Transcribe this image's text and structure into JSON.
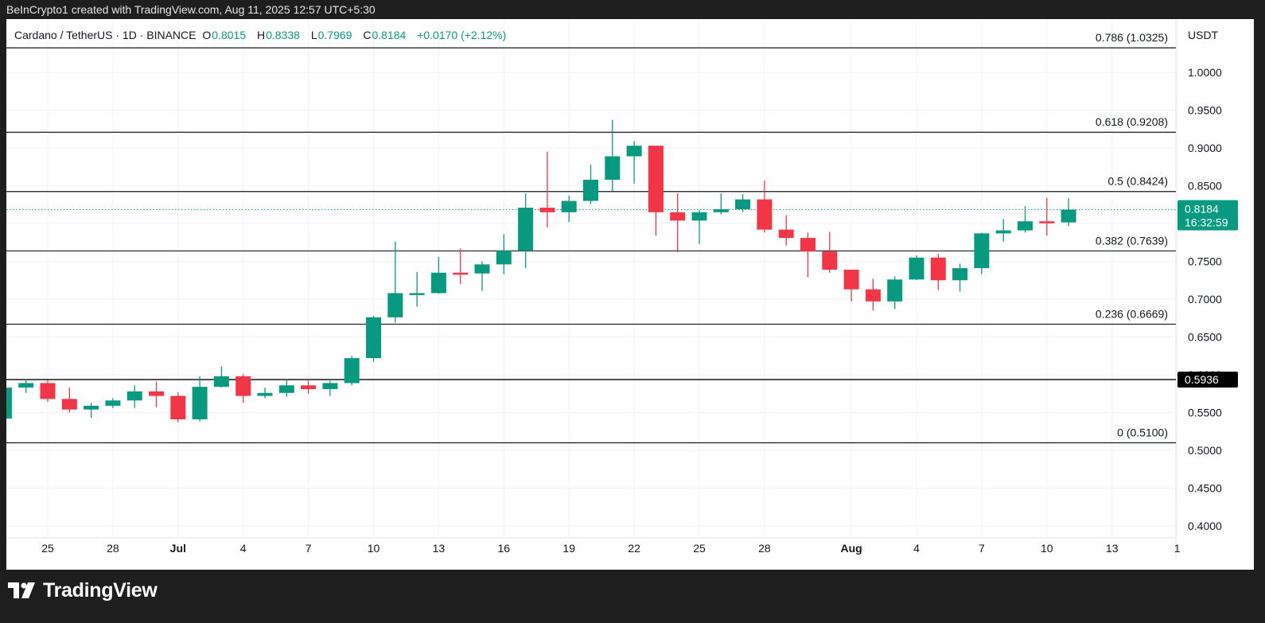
{
  "header": {
    "credit": "BeInCrypto1 created with TradingView.com, Aug 11, 2025 12:57 UTC+5:30"
  },
  "legend": {
    "symbol": "Cardano / TetherUS · 1D · BINANCE",
    "o_label": "O",
    "o": "0.8015",
    "h_label": "H",
    "h": "0.8338",
    "l_label": "L",
    "l": "0.7969",
    "c_label": "C",
    "c": "0.8184",
    "change": "+0.0170 (+2.12%)"
  },
  "currency": "USDT",
  "price_tag": {
    "price": "0.8184",
    "countdown": "16:32:59"
  },
  "line_tag": "0.5936",
  "footer": {
    "brand": "TradingView"
  },
  "colors": {
    "up": "#089981",
    "down": "#f23645",
    "grid": "#f0f3fa",
    "fib": "#131722"
  },
  "chart_data": {
    "type": "candlestick",
    "ylim": [
      0.38,
      1.07
    ],
    "y_ticks": [
      "1.0000",
      "0.9500",
      "0.9000",
      "0.8500",
      "0.8000",
      "0.7500",
      "0.7000",
      "0.6500",
      "0.6000",
      "0.5500",
      "0.5000",
      "0.4500",
      "0.4000"
    ],
    "x_ticks": [
      {
        "label": "25",
        "date": "2025-06-25"
      },
      {
        "label": "28",
        "date": "2025-06-28"
      },
      {
        "label": "Jul",
        "date": "2025-07-01"
      },
      {
        "label": "4",
        "date": "2025-07-04"
      },
      {
        "label": "7",
        "date": "2025-07-07"
      },
      {
        "label": "10",
        "date": "2025-07-10"
      },
      {
        "label": "13",
        "date": "2025-07-13"
      },
      {
        "label": "16",
        "date": "2025-07-16"
      },
      {
        "label": "19",
        "date": "2025-07-19"
      },
      {
        "label": "22",
        "date": "2025-07-22"
      },
      {
        "label": "25",
        "date": "2025-07-25"
      },
      {
        "label": "28",
        "date": "2025-07-28"
      },
      {
        "label": "Aug",
        "date": "2025-08-01"
      },
      {
        "label": "4",
        "date": "2025-08-04"
      },
      {
        "label": "7",
        "date": "2025-08-07"
      },
      {
        "label": "10",
        "date": "2025-08-10"
      },
      {
        "label": "13",
        "date": "2025-08-13"
      },
      {
        "label": "1",
        "date": "2025-08-16"
      }
    ],
    "fib_levels": [
      {
        "label": "0.786 (1.0325)",
        "value": 1.0325
      },
      {
        "label": "0.618 (0.9208)",
        "value": 0.9208
      },
      {
        "label": "0.5 (0.8424)",
        "value": 0.8424
      },
      {
        "label": "0.382 (0.7639)",
        "value": 0.7639
      },
      {
        "label": "0.236 (0.6669)",
        "value": 0.6669
      },
      {
        "label": "0 (0.5100)",
        "value": 0.51
      }
    ],
    "horizontal_line": 0.5936,
    "last_price": 0.8184,
    "candles": [
      {
        "d": "2025-06-23",
        "o": 0.542,
        "h": 0.585,
        "l": 0.54,
        "c": 0.583
      },
      {
        "d": "2025-06-24",
        "o": 0.583,
        "h": 0.594,
        "l": 0.576,
        "c": 0.589
      },
      {
        "d": "2025-06-25",
        "o": 0.589,
        "h": 0.593,
        "l": 0.564,
        "c": 0.568
      },
      {
        "d": "2025-06-26",
        "o": 0.568,
        "h": 0.583,
        "l": 0.55,
        "c": 0.554
      },
      {
        "d": "2025-06-27",
        "o": 0.554,
        "h": 0.563,
        "l": 0.543,
        "c": 0.559
      },
      {
        "d": "2025-06-28",
        "o": 0.559,
        "h": 0.569,
        "l": 0.556,
        "c": 0.566
      },
      {
        "d": "2025-06-29",
        "o": 0.566,
        "h": 0.586,
        "l": 0.556,
        "c": 0.578
      },
      {
        "d": "2025-06-30",
        "o": 0.578,
        "h": 0.591,
        "l": 0.557,
        "c": 0.572
      },
      {
        "d": "2025-07-01",
        "o": 0.572,
        "h": 0.577,
        "l": 0.537,
        "c": 0.541
      },
      {
        "d": "2025-07-02",
        "o": 0.541,
        "h": 0.598,
        "l": 0.538,
        "c": 0.584
      },
      {
        "d": "2025-07-03",
        "o": 0.584,
        "h": 0.611,
        "l": 0.583,
        "c": 0.598
      },
      {
        "d": "2025-07-04",
        "o": 0.598,
        "h": 0.601,
        "l": 0.563,
        "c": 0.572
      },
      {
        "d": "2025-07-05",
        "o": 0.572,
        "h": 0.583,
        "l": 0.569,
        "c": 0.576
      },
      {
        "d": "2025-07-06",
        "o": 0.576,
        "h": 0.594,
        "l": 0.571,
        "c": 0.586
      },
      {
        "d": "2025-07-07",
        "o": 0.586,
        "h": 0.595,
        "l": 0.575,
        "c": 0.581
      },
      {
        "d": "2025-07-08",
        "o": 0.581,
        "h": 0.592,
        "l": 0.572,
        "c": 0.589
      },
      {
        "d": "2025-07-09",
        "o": 0.589,
        "h": 0.625,
        "l": 0.586,
        "c": 0.622
      },
      {
        "d": "2025-07-10",
        "o": 0.622,
        "h": 0.678,
        "l": 0.617,
        "c": 0.676
      },
      {
        "d": "2025-07-11",
        "o": 0.676,
        "h": 0.776,
        "l": 0.669,
        "c": 0.708
      },
      {
        "d": "2025-07-12",
        "o": 0.708,
        "h": 0.736,
        "l": 0.69,
        "c": 0.708
      },
      {
        "d": "2025-07-13",
        "o": 0.708,
        "h": 0.756,
        "l": 0.707,
        "c": 0.735
      },
      {
        "d": "2025-07-14",
        "o": 0.735,
        "h": 0.767,
        "l": 0.72,
        "c": 0.734
      },
      {
        "d": "2025-07-15",
        "o": 0.734,
        "h": 0.75,
        "l": 0.711,
        "c": 0.746
      },
      {
        "d": "2025-07-16",
        "o": 0.746,
        "h": 0.786,
        "l": 0.733,
        "c": 0.764
      },
      {
        "d": "2025-07-17",
        "o": 0.764,
        "h": 0.84,
        "l": 0.741,
        "c": 0.821
      },
      {
        "d": "2025-07-18",
        "o": 0.821,
        "h": 0.895,
        "l": 0.795,
        "c": 0.815
      },
      {
        "d": "2025-07-19",
        "o": 0.815,
        "h": 0.837,
        "l": 0.802,
        "c": 0.83
      },
      {
        "d": "2025-07-20",
        "o": 0.83,
        "h": 0.878,
        "l": 0.826,
        "c": 0.858
      },
      {
        "d": "2025-07-21",
        "o": 0.858,
        "h": 0.937,
        "l": 0.843,
        "c": 0.889
      },
      {
        "d": "2025-07-22",
        "o": 0.889,
        "h": 0.909,
        "l": 0.853,
        "c": 0.903
      },
      {
        "d": "2025-07-23",
        "o": 0.903,
        "h": 0.903,
        "l": 0.784,
        "c": 0.815
      },
      {
        "d": "2025-07-24",
        "o": 0.815,
        "h": 0.84,
        "l": 0.762,
        "c": 0.804
      },
      {
        "d": "2025-07-25",
        "o": 0.804,
        "h": 0.818,
        "l": 0.773,
        "c": 0.815
      },
      {
        "d": "2025-07-26",
        "o": 0.815,
        "h": 0.84,
        "l": 0.812,
        "c": 0.819
      },
      {
        "d": "2025-07-27",
        "o": 0.819,
        "h": 0.839,
        "l": 0.815,
        "c": 0.832
      },
      {
        "d": "2025-07-28",
        "o": 0.832,
        "h": 0.857,
        "l": 0.788,
        "c": 0.792
      },
      {
        "d": "2025-07-29",
        "o": 0.792,
        "h": 0.811,
        "l": 0.771,
        "c": 0.781
      },
      {
        "d": "2025-07-30",
        "o": 0.781,
        "h": 0.788,
        "l": 0.729,
        "c": 0.763
      },
      {
        "d": "2025-07-31",
        "o": 0.763,
        "h": 0.789,
        "l": 0.735,
        "c": 0.739
      },
      {
        "d": "2025-08-01",
        "o": 0.739,
        "h": 0.739,
        "l": 0.697,
        "c": 0.713
      },
      {
        "d": "2025-08-02",
        "o": 0.713,
        "h": 0.727,
        "l": 0.685,
        "c": 0.697
      },
      {
        "d": "2025-08-03",
        "o": 0.697,
        "h": 0.73,
        "l": 0.687,
        "c": 0.726
      },
      {
        "d": "2025-08-04",
        "o": 0.726,
        "h": 0.758,
        "l": 0.725,
        "c": 0.755
      },
      {
        "d": "2025-08-05",
        "o": 0.755,
        "h": 0.76,
        "l": 0.712,
        "c": 0.725
      },
      {
        "d": "2025-08-06",
        "o": 0.725,
        "h": 0.747,
        "l": 0.71,
        "c": 0.741
      },
      {
        "d": "2025-08-07",
        "o": 0.741,
        "h": 0.788,
        "l": 0.733,
        "c": 0.787
      },
      {
        "d": "2025-08-08",
        "o": 0.787,
        "h": 0.806,
        "l": 0.776,
        "c": 0.791
      },
      {
        "d": "2025-08-09",
        "o": 0.791,
        "h": 0.823,
        "l": 0.788,
        "c": 0.803
      },
      {
        "d": "2025-08-10",
        "o": 0.803,
        "h": 0.834,
        "l": 0.784,
        "c": 0.802
      },
      {
        "d": "2025-08-11",
        "o": 0.8015,
        "h": 0.8338,
        "l": 0.7969,
        "c": 0.8184
      }
    ]
  }
}
